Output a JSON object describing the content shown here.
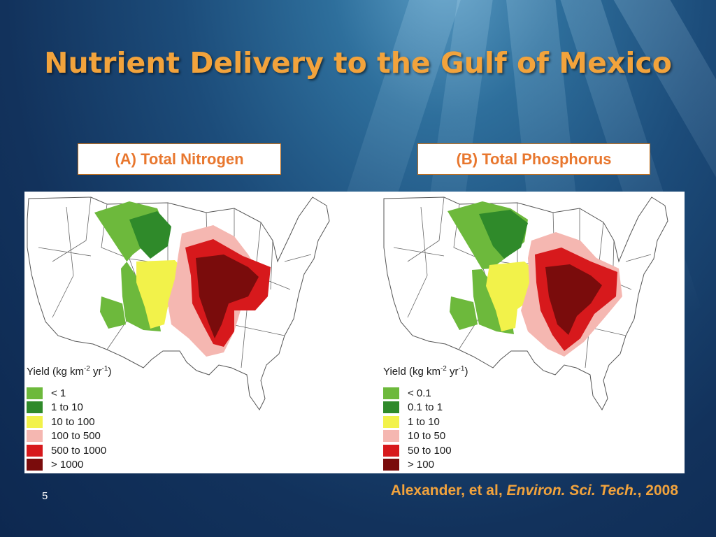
{
  "slide": {
    "title": "Nutrient Delivery to the Gulf of Mexico",
    "number": "5"
  },
  "maps": [
    {
      "label": "(A) Total Nitrogen",
      "legend_title": {
        "main": "Yield (kg km",
        "exp1": "-2",
        "mid": " yr",
        "exp2": "-1",
        "end": ")"
      },
      "classes": [
        {
          "range": "< 1",
          "color": "#6db93c"
        },
        {
          "range": "1 to 10",
          "color": "#2f8a2a"
        },
        {
          "range": "10 to 100",
          "color": "#f2f24a"
        },
        {
          "range": "100 to 500",
          "color": "#f5b7b1"
        },
        {
          "range": "500 to 1000",
          "color": "#d7191c"
        },
        {
          "range": "> 1000",
          "color": "#7a0c0c"
        }
      ]
    },
    {
      "label": "(B) Total Phosphorus",
      "legend_title": {
        "main": "Yield (kg km",
        "exp1": "-2",
        "mid": " yr",
        "exp2": "-1",
        "end": ")"
      },
      "classes": [
        {
          "range": "< 0.1",
          "color": "#6db93c"
        },
        {
          "range": "0.1 to 1",
          "color": "#2f8a2a"
        },
        {
          "range": "1 to 10",
          "color": "#f2f24a"
        },
        {
          "range": "10 to 50",
          "color": "#f5b7b1"
        },
        {
          "range": "50 to 100",
          "color": "#d7191c"
        },
        {
          "range": "> 100",
          "color": "#7a0c0c"
        }
      ]
    }
  ],
  "citation": {
    "authors": "Alexander, et al, ",
    "journal": "Environ. Sci. Tech.",
    "year": ", 2008"
  },
  "colors": {
    "title": "#f2a33c",
    "background": "#1c4c7a",
    "label_text": "#e8772e"
  }
}
